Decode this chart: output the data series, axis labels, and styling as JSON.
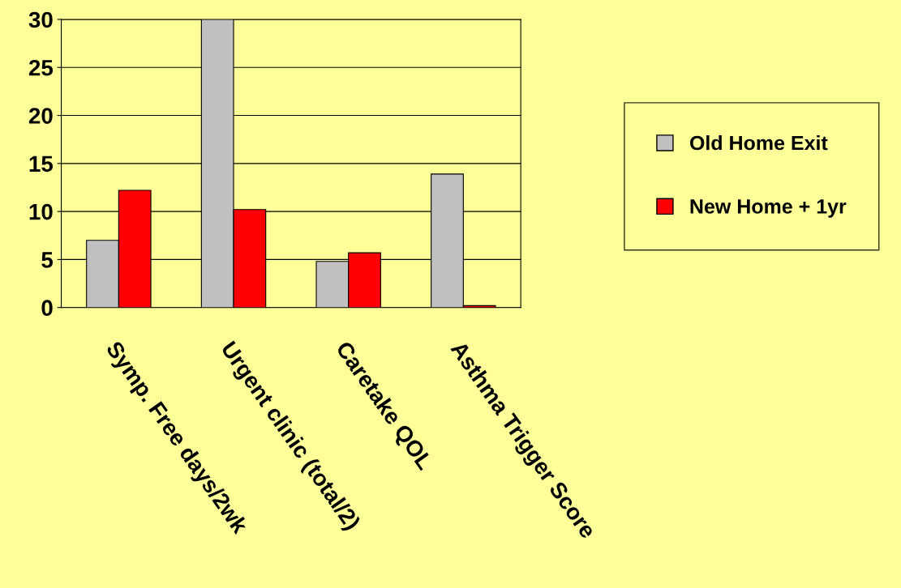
{
  "chart_data": {
    "type": "bar",
    "categories": [
      "Symp. Free days/2wk",
      "Urgent clinic (total/2)",
      "Caretake QOL",
      "Asthma Trigger Score"
    ],
    "series": [
      {
        "name": "Old Home Exit",
        "color": "#c0c0c0",
        "values": [
          7,
          30,
          4.8,
          13.9
        ]
      },
      {
        "name": "New Home + 1yr",
        "color": "#ff0000",
        "values": [
          12.2,
          10.2,
          5.7,
          0.2
        ]
      }
    ],
    "ylim": [
      0,
      30
    ],
    "yticks": [
      0,
      5,
      10,
      15,
      20,
      25,
      30
    ],
    "grid": "y",
    "legend": "right"
  }
}
